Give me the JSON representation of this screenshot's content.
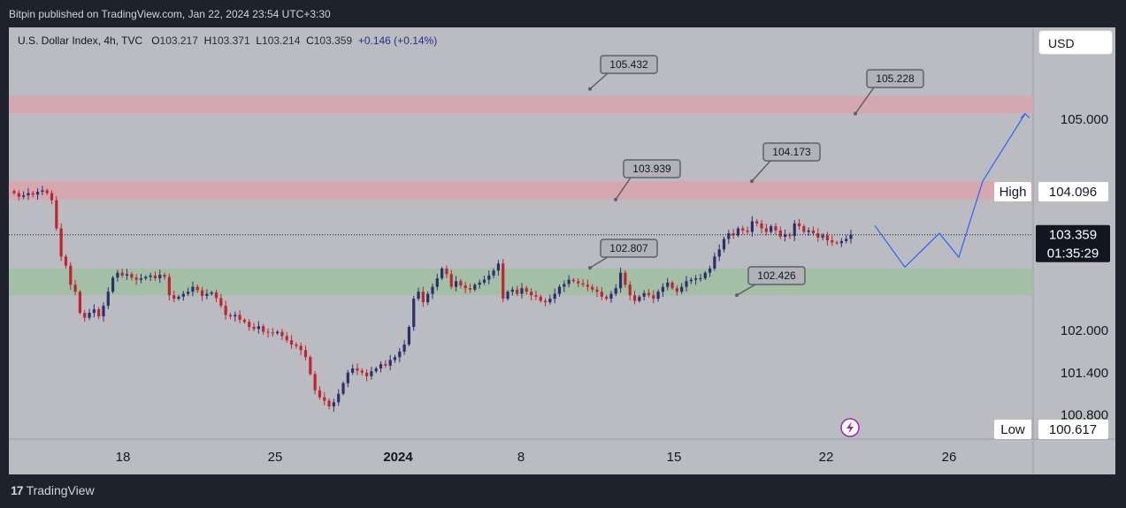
{
  "header": {
    "publish_text": "Bitpin published on TradingView.com, Jan 22, 2024 23:54 UTC+3:30"
  },
  "legend": {
    "symbol": "U.S. Dollar Index, 4h, TVC",
    "o_label": "O",
    "o_value": "103.217",
    "h_label": "H",
    "h_value": "103.371",
    "l_label": "L",
    "l_value": "103.214",
    "c_label": "C",
    "c_value": "103.359",
    "change": "+0.146 (+0.14%)"
  },
  "currency_button": "USD",
  "footer": {
    "logo_mark": "17",
    "logo_text": "TradingView"
  },
  "colors": {
    "background": "#babcc1",
    "up_candle": "#2b2f6b",
    "down_candle": "#c0252e",
    "resistance_zone": "#d9a5ab",
    "support_zone": "#9fbfa1",
    "projection_line": "#2962ff",
    "price_label_bg": "#131722"
  },
  "chart_data": {
    "type": "candlestick",
    "title": "U.S. Dollar Index, 4h, TVC",
    "timeframe": "4h",
    "x_tick_labels": [
      "18",
      "25",
      "2024",
      "8",
      "15",
      "22",
      "26"
    ],
    "y_tick_labels": [
      "105.000",
      "102.000",
      "101.400",
      "100.800"
    ],
    "ylim": [
      100.6,
      105.8
    ],
    "current_price": "103.359",
    "countdown": "01:35:29",
    "high_label": "High",
    "high_value": "104.096",
    "low_label": "Low",
    "low_value": "100.617",
    "zones": [
      {
        "name": "upper resistance",
        "low": 105.08,
        "high": 105.33
      },
      {
        "name": "resistance",
        "low": 103.86,
        "high": 104.12
      },
      {
        "name": "support",
        "low": 102.5,
        "high": 102.88
      }
    ],
    "callouts": [
      {
        "text": "105.432",
        "anchor_price": 105.43
      },
      {
        "text": "105.228",
        "anchor_price": 105.08
      },
      {
        "text": "103.939",
        "anchor_price": 103.86
      },
      {
        "text": "104.173",
        "anchor_price": 104.12
      },
      {
        "text": "102.807",
        "anchor_price": 102.89
      },
      {
        "text": "102.426",
        "anchor_price": 102.5
      }
    ],
    "projection_path": [
      103.49,
      102.9,
      103.38,
      103.04,
      104.12,
      105.08
    ],
    "closes": [
      103.95,
      103.9,
      103.92,
      103.95,
      103.93,
      103.97,
      103.99,
      103.95,
      103.85,
      103.45,
      103.05,
      102.92,
      102.65,
      102.55,
      102.25,
      102.18,
      102.25,
      102.3,
      102.2,
      102.35,
      102.55,
      102.75,
      102.82,
      102.78,
      102.8,
      102.75,
      102.72,
      102.74,
      102.76,
      102.78,
      102.74,
      102.79,
      102.76,
      102.5,
      102.45,
      102.48,
      102.52,
      102.55,
      102.62,
      102.57,
      102.49,
      102.52,
      102.54,
      102.46,
      102.35,
      102.22,
      102.2,
      102.22,
      102.15,
      102.12,
      102.05,
      102.02,
      102.06,
      101.98,
      101.97,
      101.96,
      101.98,
      101.92,
      101.86,
      101.8,
      101.78,
      101.72,
      101.62,
      101.38,
      101.15,
      101.05,
      101.0,
      100.92,
      100.98,
      101.1,
      101.25,
      101.4,
      101.46,
      101.43,
      101.4,
      101.35,
      101.42,
      101.46,
      101.52,
      101.5,
      101.58,
      101.62,
      101.7,
      101.8,
      102.05,
      102.45,
      102.55,
      102.4,
      102.52,
      102.62,
      102.74,
      102.88,
      102.8,
      102.62,
      102.7,
      102.64,
      102.6,
      102.58,
      102.65,
      102.68,
      102.72,
      102.78,
      102.85,
      102.95,
      102.45,
      102.55,
      102.58,
      102.52,
      102.6,
      102.55,
      102.5,
      102.48,
      102.42,
      102.4,
      102.45,
      102.52,
      102.62,
      102.66,
      102.72,
      102.7,
      102.67,
      102.65,
      102.62,
      102.58,
      102.55,
      102.48,
      102.45,
      102.52,
      102.6,
      102.82,
      102.65,
      102.5,
      102.42,
      102.48,
      102.53,
      102.5,
      102.45,
      102.55,
      102.62,
      102.68,
      102.6,
      102.55,
      102.62,
      102.7,
      102.72,
      102.74,
      102.74,
      102.82,
      102.88,
      103.05,
      103.15,
      103.3,
      103.38,
      103.35,
      103.45,
      103.42,
      103.4,
      103.55,
      103.52,
      103.45,
      103.4,
      103.48,
      103.42,
      103.33,
      103.36,
      103.34,
      103.52,
      103.48,
      103.4,
      103.42,
      103.38,
      103.32,
      103.35,
      103.28,
      103.25,
      103.24,
      103.27,
      103.3,
      103.36
    ]
  }
}
